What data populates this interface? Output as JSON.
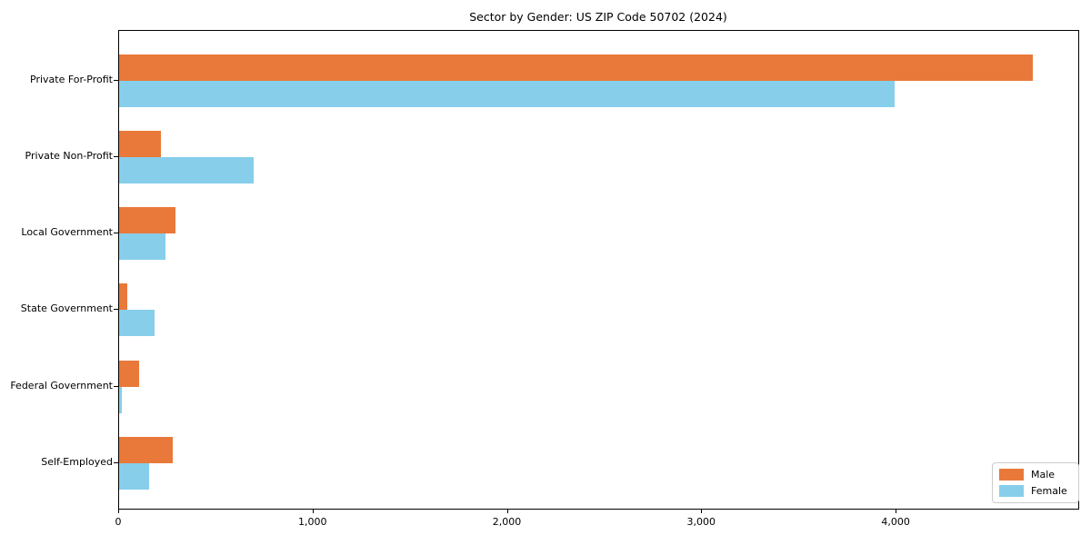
{
  "chart_data": {
    "type": "bar",
    "orientation": "horizontal",
    "title": "Sector by Gender: US ZIP Code 50702 (2024)",
    "categories": [
      "Private For-Profit",
      "Private Non-Profit",
      "Local Government",
      "State Government",
      "Federal Government",
      "Self-Employed"
    ],
    "series": [
      {
        "name": "Male",
        "color": "#e8793a",
        "values": [
          4700,
          215,
          290,
          40,
          105,
          275
        ]
      },
      {
        "name": "Female",
        "color": "#87ceeb",
        "values": [
          3990,
          690,
          240,
          180,
          15,
          155
        ]
      }
    ],
    "xlim": [
      0,
      4940
    ],
    "x_ticks": [
      {
        "value": 0,
        "label": "0"
      },
      {
        "value": 1000,
        "label": "1,000"
      },
      {
        "value": 2000,
        "label": "2,000"
      },
      {
        "value": 3000,
        "label": "3,000"
      },
      {
        "value": 4000,
        "label": "4,000"
      }
    ],
    "xlabel": "",
    "ylabel": "",
    "grid": false,
    "legend_position": "lower right",
    "colors": {
      "background": "#ffffff",
      "axis": "#000000",
      "legend_border": "#cccccc",
      "male": "#e8793a",
      "female": "#87ceeb"
    }
  }
}
